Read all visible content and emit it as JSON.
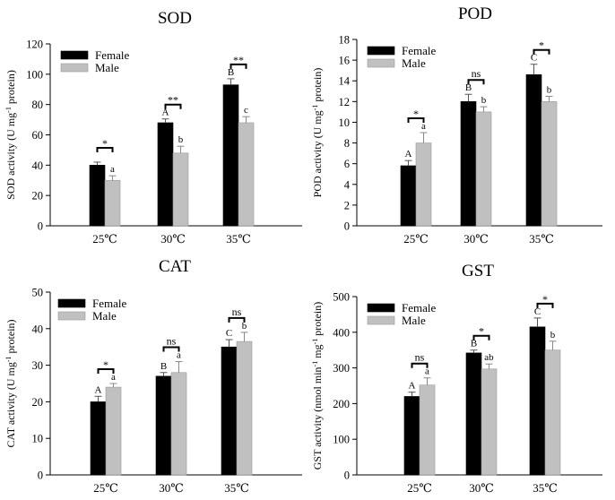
{
  "chart_data": [
    {
      "type": "bar",
      "title": "SOD",
      "ylabel": "SOD activity (U mg",
      "ylabel_sup": "-1",
      "ylabel_tail": " protein)",
      "ylim": [
        0,
        120
      ],
      "yticks": [
        0,
        20,
        40,
        60,
        80,
        100,
        120
      ],
      "categories": [
        "25℃",
        "30℃",
        "35℃"
      ],
      "series": [
        {
          "name": "Female",
          "color": "#000000",
          "values": [
            40,
            68,
            93
          ],
          "errors": [
            2,
            2.5,
            4
          ],
          "letters": [
            "",
            "A",
            "B"
          ]
        },
        {
          "name": "Male",
          "color": "#c0c0c0",
          "values": [
            30,
            48,
            68
          ],
          "errors": [
            3,
            4.5,
            4
          ],
          "letters": [
            "a",
            "b",
            "c"
          ]
        }
      ],
      "significance": [
        "*",
        "**",
        "**"
      ],
      "legend_position": "top-left"
    },
    {
      "type": "bar",
      "title": "POD",
      "ylabel": "POD activity (U mg",
      "ylabel_sup": "-1",
      "ylabel_tail": " protein)",
      "ylim": [
        0,
        18
      ],
      "yticks": [
        0,
        2,
        4,
        6,
        8,
        10,
        12,
        14,
        16,
        18
      ],
      "categories": [
        "25℃",
        "30℃",
        "35℃"
      ],
      "series": [
        {
          "name": "Female",
          "color": "#000000",
          "values": [
            5.8,
            12.0,
            14.6
          ],
          "errors": [
            0.5,
            0.7,
            1.0
          ],
          "letters": [
            "A",
            "B",
            "C"
          ]
        },
        {
          "name": "Male",
          "color": "#c0c0c0",
          "values": [
            8.0,
            11.0,
            12.0
          ],
          "errors": [
            1.0,
            0.5,
            0.5
          ],
          "letters": [
            "a",
            "b",
            "b"
          ]
        }
      ],
      "significance": [
        "*",
        "ns",
        "*"
      ],
      "legend_position": "top-left"
    },
    {
      "type": "bar",
      "title": "CAT",
      "ylabel": "CAT activity (U mg",
      "ylabel_sup": "-1",
      "ylabel_tail": " protein)",
      "ylim": [
        0,
        50
      ],
      "yticks": [
        0,
        10,
        20,
        30,
        40,
        50
      ],
      "categories": [
        "25℃",
        "30℃",
        "35℃"
      ],
      "series": [
        {
          "name": "Female",
          "color": "#000000",
          "values": [
            20,
            27,
            35
          ],
          "errors": [
            1.5,
            1.0,
            2.0
          ],
          "letters": [
            "A",
            "B",
            "C"
          ]
        },
        {
          "name": "Male",
          "color": "#c0c0c0",
          "values": [
            24,
            28,
            36.5
          ],
          "errors": [
            1.0,
            3.0,
            2.5
          ],
          "letters": [
            "a",
            "a",
            "b"
          ]
        }
      ],
      "significance": [
        "*",
        "ns",
        "ns"
      ],
      "legend_position": "top-left"
    },
    {
      "type": "bar",
      "title": "GST",
      "ylabel": "GST activity (nmol min",
      "ylabel_sup": "-1",
      "ylabel_mid": " mg",
      "ylabel_sup2": "-1",
      "ylabel_tail": " protein)",
      "ylim": [
        0,
        500
      ],
      "yticks": [
        0,
        100,
        200,
        300,
        400,
        500
      ],
      "categories": [
        "25℃",
        "30℃",
        "35℃"
      ],
      "series": [
        {
          "name": "Female",
          "color": "#000000",
          "values": [
            220,
            342,
            415
          ],
          "errors": [
            12,
            8,
            25
          ],
          "letters": [
            "A",
            "B",
            "C"
          ]
        },
        {
          "name": "Male",
          "color": "#c0c0c0",
          "values": [
            252,
            297,
            350
          ],
          "errors": [
            20,
            14,
            25
          ],
          "letters": [
            "a",
            "ab",
            "b"
          ]
        }
      ],
      "significance": [
        "ns",
        "*",
        "*"
      ],
      "legend_position": "top-left"
    }
  ]
}
